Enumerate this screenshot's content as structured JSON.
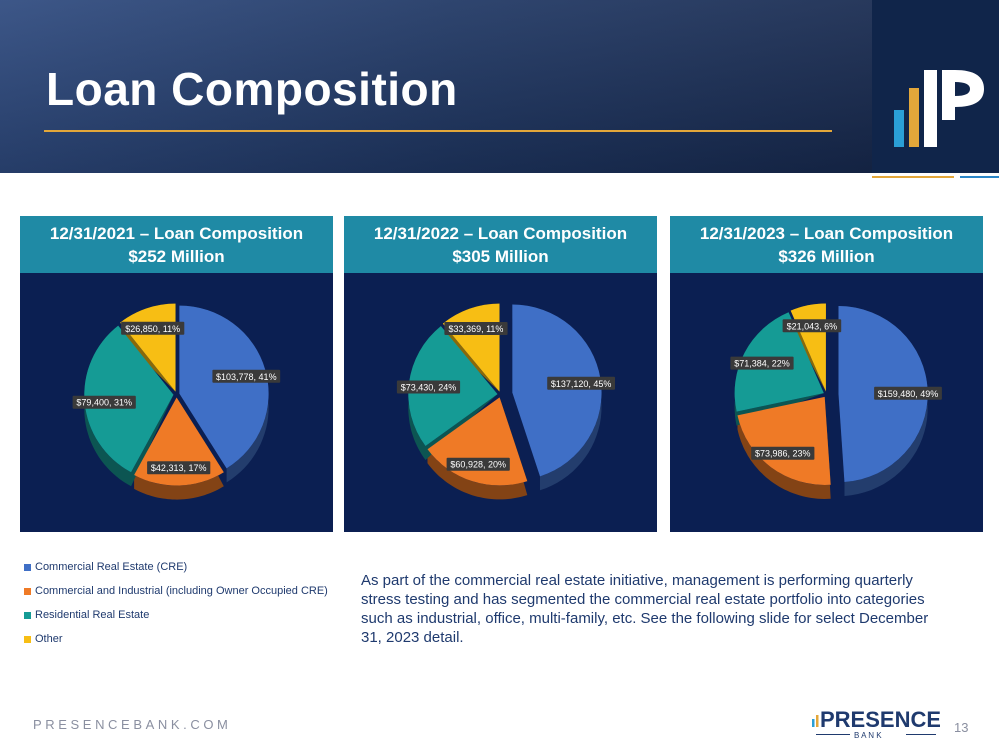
{
  "header": {
    "title": "Loan Composition"
  },
  "chart_data": [
    {
      "type": "pie",
      "title": "12/31/2021 – Loan Composition",
      "subtitle": "$252 Million",
      "categories": [
        "Commercial Real Estate (CRE)",
        "Commercial and Industrial (including Owner Occupied CRE)",
        "Residential Real Estate",
        "Other"
      ],
      "values": [
        103778,
        42313,
        79400,
        26850
      ],
      "percents": [
        41,
        17,
        31,
        11
      ],
      "labels": [
        "$103,778, 41%",
        "$42,313, 17%",
        "$79,400, 31%",
        "$26,850, 11%"
      ],
      "colors": [
        "#3f6fc6",
        "#ef7a26",
        "#159b95",
        "#f7be14"
      ],
      "exploded": []
    },
    {
      "type": "pie",
      "title": "12/31/2022 – Loan Composition",
      "subtitle": "$305 Million",
      "categories": [
        "Commercial Real Estate (CRE)",
        "Commercial and Industrial (including Owner Occupied CRE)",
        "Residential Real Estate",
        "Other"
      ],
      "values": [
        137120,
        60928,
        73430,
        33369
      ],
      "percents": [
        45,
        20,
        24,
        11
      ],
      "labels": [
        "$137,120, 45%",
        "$60,928, 20%",
        "$73,430, 24%",
        "$33,369, 11%"
      ],
      "colors": [
        "#3f6fc6",
        "#ef7a26",
        "#159b95",
        "#f7be14"
      ],
      "exploded": [
        0
      ]
    },
    {
      "type": "pie",
      "title": "12/31/2023 – Loan Composition",
      "subtitle": "$326 Million",
      "categories": [
        "Commercial Real Estate (CRE)",
        "Commercial and Industrial (including Owner Occupied CRE)",
        "Residential Real Estate",
        "Other"
      ],
      "values": [
        159480,
        73986,
        71384,
        21043
      ],
      "percents": [
        49,
        23,
        22,
        6
      ],
      "labels": [
        "$159,480, 49%",
        "$73,986, 23%",
        "$71,384, 22%",
        "$21,043, 6%"
      ],
      "colors": [
        "#3f6fc6",
        "#ef7a26",
        "#159b95",
        "#f7be14"
      ],
      "exploded": [
        0
      ]
    }
  ],
  "legend": [
    {
      "label": "Commercial Real Estate (CRE)",
      "color": "#3f6fc6"
    },
    {
      "label": "Commercial and Industrial (including Owner Occupied CRE)",
      "color": "#ef7a26"
    },
    {
      "label": "Residential Real Estate",
      "color": "#159b95"
    },
    {
      "label": "Other",
      "color": "#f7be14"
    }
  ],
  "body_text": "As part of the commercial real estate initiative, management is performing quarterly stress testing and has segmented the commercial real estate portfolio into categories such as industrial, office, multi-family, etc.  See the following slide for select December 31, 2023 detail.",
  "footer": {
    "url": "PRESENCEBANK.COM",
    "logo_word": "PRESENCE",
    "logo_sub": "B A N K",
    "page_number": "13"
  }
}
